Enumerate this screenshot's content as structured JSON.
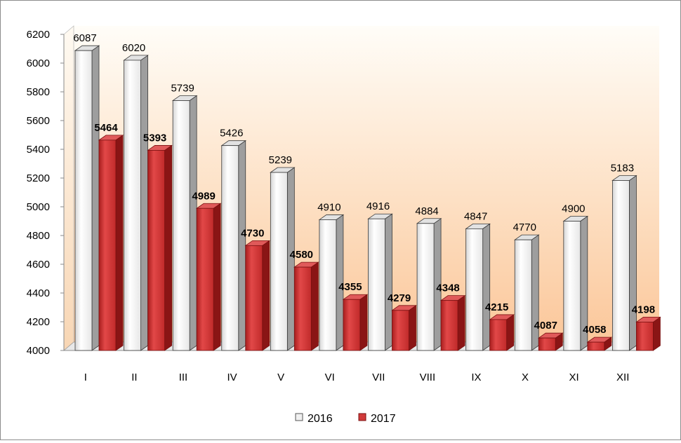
{
  "chart_data": {
    "type": "bar",
    "categories": [
      "I",
      "II",
      "III",
      "IV",
      "V",
      "VI",
      "VII",
      "VIII",
      "IX",
      "X",
      "XI",
      "XII"
    ],
    "series": [
      {
        "name": "2016",
        "values": [
          6087,
          6020,
          5739,
          5426,
          5239,
          4910,
          4916,
          4884,
          4847,
          4770,
          4900,
          5183
        ],
        "color": "#f0f0f0"
      },
      {
        "name": "2017",
        "values": [
          5464,
          5393,
          4989,
          4730,
          4580,
          4355,
          4279,
          4348,
          4215,
          4087,
          4058,
          4198
        ],
        "color": "#cc3333"
      }
    ],
    "yticks": [
      4000,
      4200,
      4400,
      4600,
      4800,
      5000,
      5200,
      5400,
      5600,
      5800,
      6000,
      6200
    ],
    "ylim": [
      4000,
      6200
    ],
    "legend_position": "bottom",
    "background": "gradient-peach",
    "data_labels": true
  }
}
